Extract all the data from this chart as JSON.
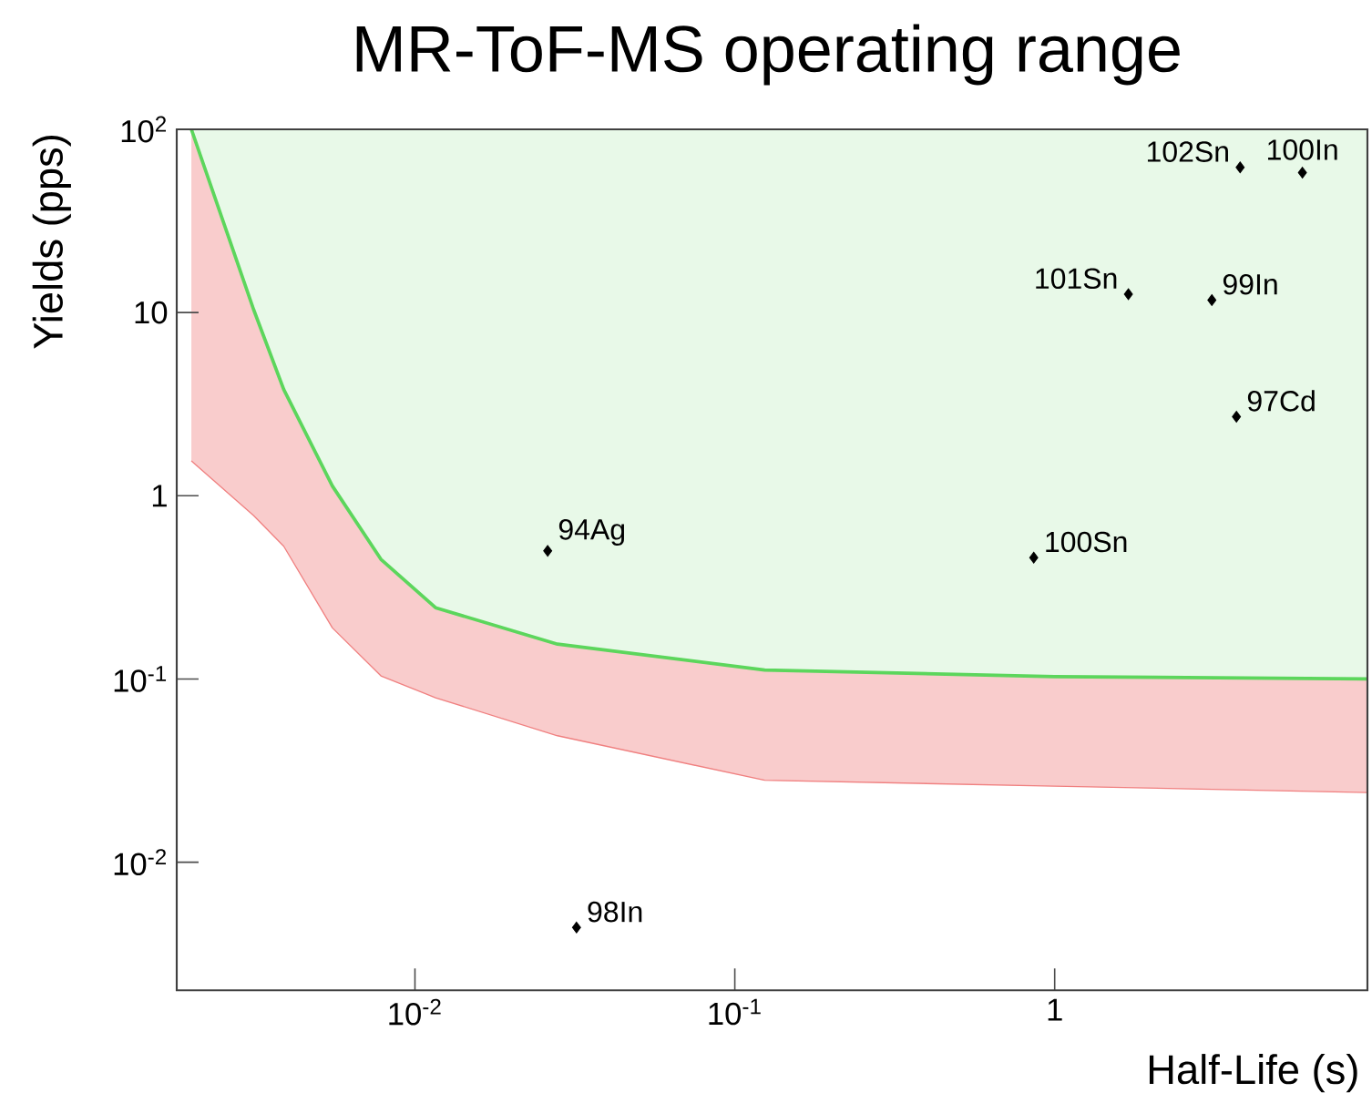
{
  "chart_data": {
    "type": "scatter",
    "title": "MR-ToF-MS operating range",
    "xlabel": "Half-Life (s)",
    "ylabel": "Yields (pps)",
    "log": "xy",
    "xlim": [
      0.0018,
      9.5
    ],
    "ylim": [
      0.002,
      100
    ],
    "xticks": [
      {
        "value": 0.01,
        "label": "10$^{-2}$"
      },
      {
        "value": 0.1,
        "label": "10$^{-1}$"
      },
      {
        "value": 1,
        "label": "1"
      }
    ],
    "yticks": [
      {
        "value": 0.01,
        "label": "10$^{-2}$"
      },
      {
        "value": 0.1,
        "label": "10$^{-1}$"
      },
      {
        "value": 1,
        "label": "1"
      },
      {
        "value": 10,
        "label": "10"
      },
      {
        "value": 100,
        "label": "10$^{2}$"
      }
    ],
    "series": [
      {
        "type": "line",
        "color": "#f08080",
        "x": [
          0.002,
          0.00313,
          0.00389,
          0.00552,
          0.00783,
          0.0116,
          0.0279,
          0.124,
          1,
          9.5
        ],
        "values": [
          1.55,
          0.78,
          0.53,
          0.19,
          0.104,
          0.079,
          0.049,
          0.028,
          0.026,
          0.024
        ],
        "lower": [
          1.55,
          0.78,
          0.53,
          0.19,
          0.104,
          0.079,
          0.049,
          0.028,
          0.026,
          0.024
        ],
        "upper": [
          100,
          10.4,
          3.8,
          1.13,
          0.45,
          0.245,
          0.155,
          0.112,
          0.103,
          0.1
        ]
      },
      {
        "type": "line",
        "color": "#5cd65c",
        "x": [
          0.002,
          0.00313,
          0.00389,
          0.00552,
          0.00783,
          0.0116,
          0.0279,
          0.124,
          1,
          9.5
        ],
        "values": [
          100,
          10.4,
          3.8,
          1.13,
          0.45,
          0.245,
          0.155,
          0.112,
          0.103,
          0.1
        ]
      },
      {
        "color": "#000000",
        "marker": "diamond",
        "x": [
          3.8,
          5.95,
          1.7,
          3.1,
          3.7,
          0.86,
          0.026,
          0.032
        ],
        "values": [
          62,
          58,
          12.6,
          11.7,
          2.7,
          0.46,
          0.5,
          0.0044
        ]
      }
    ],
    "annotations": [
      {
        "text": "102Sn",
        "x": 3.8,
        "y": 62
      },
      {
        "text": "100In",
        "x": 5.95,
        "y": 58
      },
      {
        "text": "101Sn",
        "x": 1.7,
        "y": 12.6
      },
      {
        "text": "99In",
        "x": 3.1,
        "y": 11.7
      },
      {
        "text": "97Cd",
        "x": 3.7,
        "y": 2.7
      },
      {
        "text": "100Sn",
        "x": 0.86,
        "y": 0.46
      },
      {
        "text": "94Ag",
        "x": 0.026,
        "y": 0.5
      },
      {
        "text": "98In",
        "x": 0.032,
        "y": 0.0044
      }
    ]
  }
}
